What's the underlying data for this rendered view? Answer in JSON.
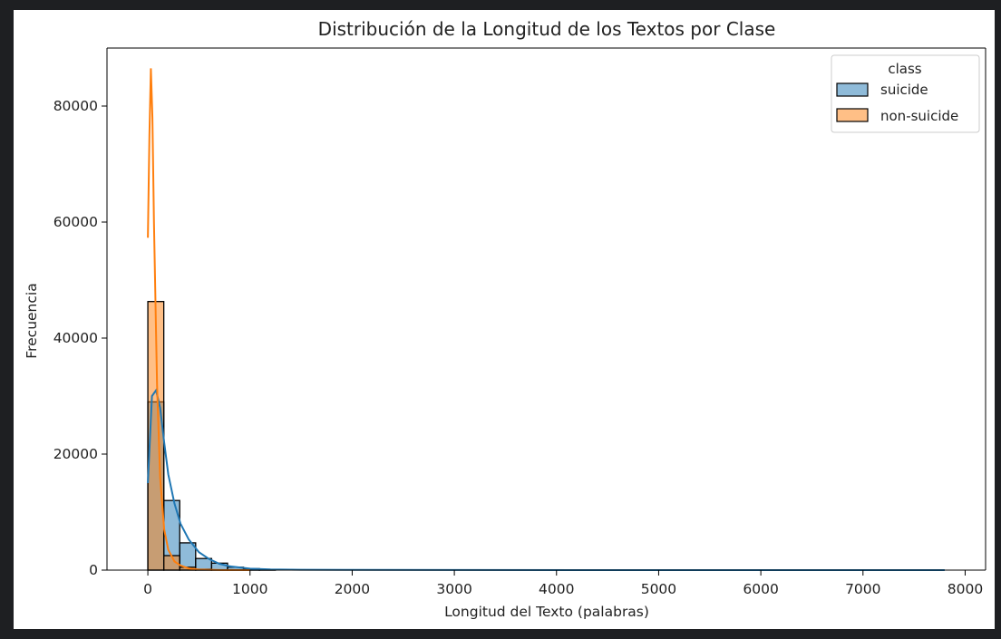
{
  "chart_data": {
    "type": "bar",
    "title": "Distribución de la Longitud de los Textos por Clase",
    "xlabel": "Longitud del Texto (palabras)",
    "ylabel": "Frecuencia",
    "xlim": [
      -400,
      8200
    ],
    "ylim": [
      0,
      90000
    ],
    "xticks": [
      0,
      1000,
      2000,
      3000,
      4000,
      5000,
      6000,
      7000,
      8000
    ],
    "yticks": [
      0,
      20000,
      40000,
      60000,
      80000
    ],
    "grid": false,
    "legend": {
      "title": "class",
      "position": "top-right"
    },
    "bin_edges": [
      0,
      156,
      312,
      468,
      624,
      780,
      936,
      1092,
      1248
    ],
    "series": [
      {
        "name": "suicide",
        "color": "#1f77b4",
        "values": [
          29000,
          12000,
          4700,
          2000,
          1200,
          500,
          250,
          120
        ]
      },
      {
        "name": "non-suicide",
        "color": "#ff7f0e",
        "values": [
          46300,
          2500,
          500,
          150,
          50,
          20,
          10,
          5
        ]
      }
    ],
    "kde": [
      {
        "name": "suicide",
        "x": [
          0,
          40,
          80,
          120,
          160,
          200,
          260,
          320,
          400,
          500,
          600,
          700,
          800,
          1000,
          1200,
          1500,
          2000,
          3000,
          5000,
          7800
        ],
        "y": [
          15000,
          30000,
          31000,
          28000,
          22000,
          16500,
          11500,
          8000,
          5300,
          3100,
          1900,
          1100,
          650,
          250,
          120,
          60,
          30,
          10,
          5,
          0
        ]
      },
      {
        "name": "non-suicide",
        "x": [
          0,
          15,
          30,
          45,
          60,
          90,
          120,
          160,
          200,
          260,
          320,
          400,
          500,
          700,
          1000
        ],
        "y": [
          57300,
          75000,
          86500,
          78000,
          60000,
          32000,
          16000,
          7000,
          3500,
          1500,
          800,
          300,
          100,
          20,
          0
        ]
      }
    ]
  }
}
